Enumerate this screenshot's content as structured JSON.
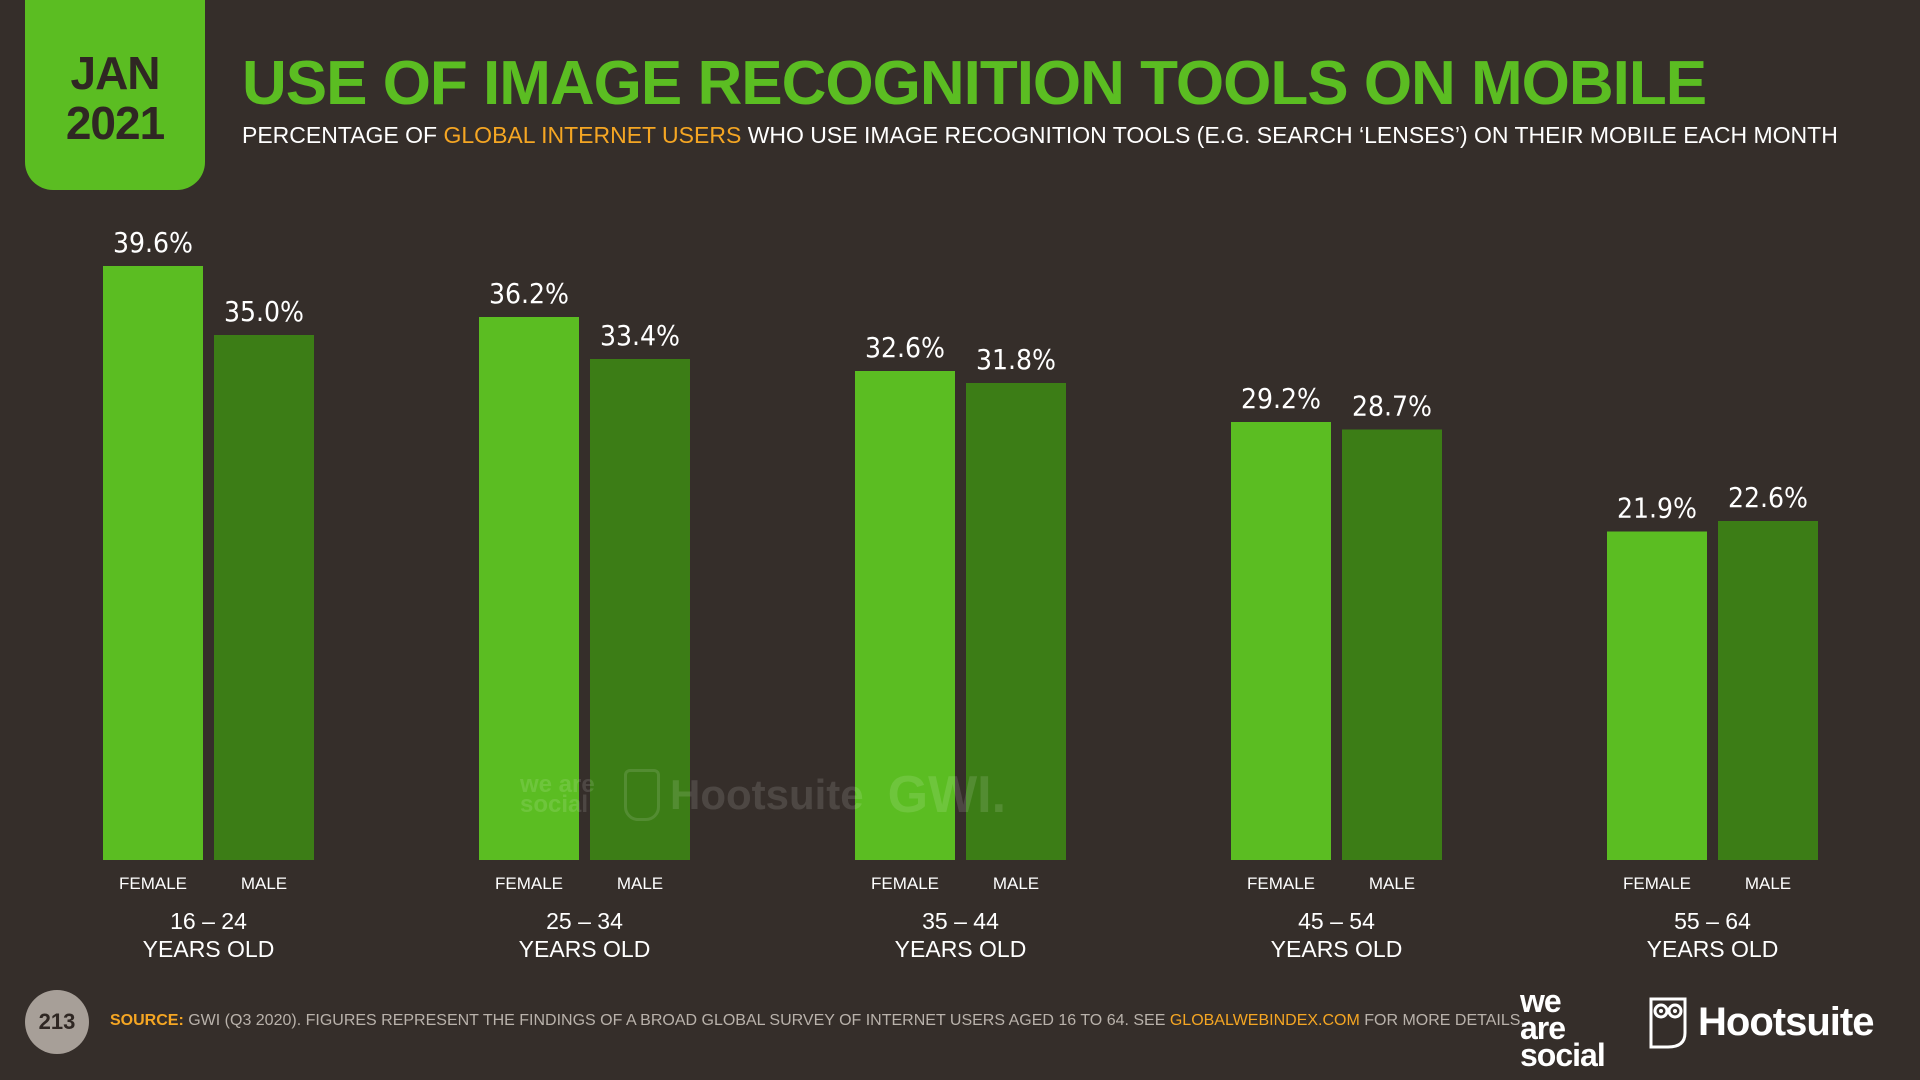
{
  "date_badge": {
    "month": "JAN",
    "year": "2021"
  },
  "title": "USE OF IMAGE RECOGNITION TOOLS ON MOBILE",
  "subtitle": {
    "pre": "PERCENTAGE OF ",
    "highlight": "GLOBAL INTERNET USERS",
    "post": " WHO USE IMAGE RECOGNITION TOOLS (E.G. SEARCH ‘LENSES’) ON THEIR MOBILE EACH MONTH"
  },
  "chart_data": {
    "type": "bar",
    "categories": [
      "16 – 24",
      "25 – 34",
      "35 – 44",
      "45 – 54",
      "55 – 64"
    ],
    "category_suffix": "YEARS OLD",
    "series": [
      {
        "name": "FEMALE",
        "values": [
          39.6,
          36.2,
          32.6,
          29.2,
          21.9
        ],
        "color": "#5bbd22"
      },
      {
        "name": "MALE",
        "values": [
          35.0,
          33.4,
          31.8,
          28.7,
          22.6
        ],
        "color": "#3c7d16"
      }
    ],
    "value_labels": {
      "FEMALE": [
        "39.6%",
        "36.2%",
        "32.6%",
        "29.2%",
        "21.9%"
      ],
      "MALE": [
        "35.0%",
        "33.4%",
        "31.8%",
        "28.7%",
        "22.6%"
      ]
    },
    "ylim": [
      0,
      40
    ],
    "grid": false,
    "legend": "under each bar"
  },
  "watermark": {
    "was": "we are social",
    "hootsuite": "Hootsuite",
    "gwi": "GWI."
  },
  "footer": {
    "page_number": "213",
    "source_label": "SOURCE:",
    "source_text": " GWI (Q3 2020). FIGURES REPRESENT THE FINDINGS OF A BROAD GLOBAL SURVEY OF INTERNET USERS AGED 16 TO 64. SEE ",
    "source_link": "GLOBALWEBINDEX.COM",
    "source_tail": " FOR MORE DETAILS.",
    "logo_was": [
      "we",
      "are",
      "social"
    ],
    "logo_hootsuite": "Hootsuite",
    "owl_icon": "owl-icon"
  }
}
